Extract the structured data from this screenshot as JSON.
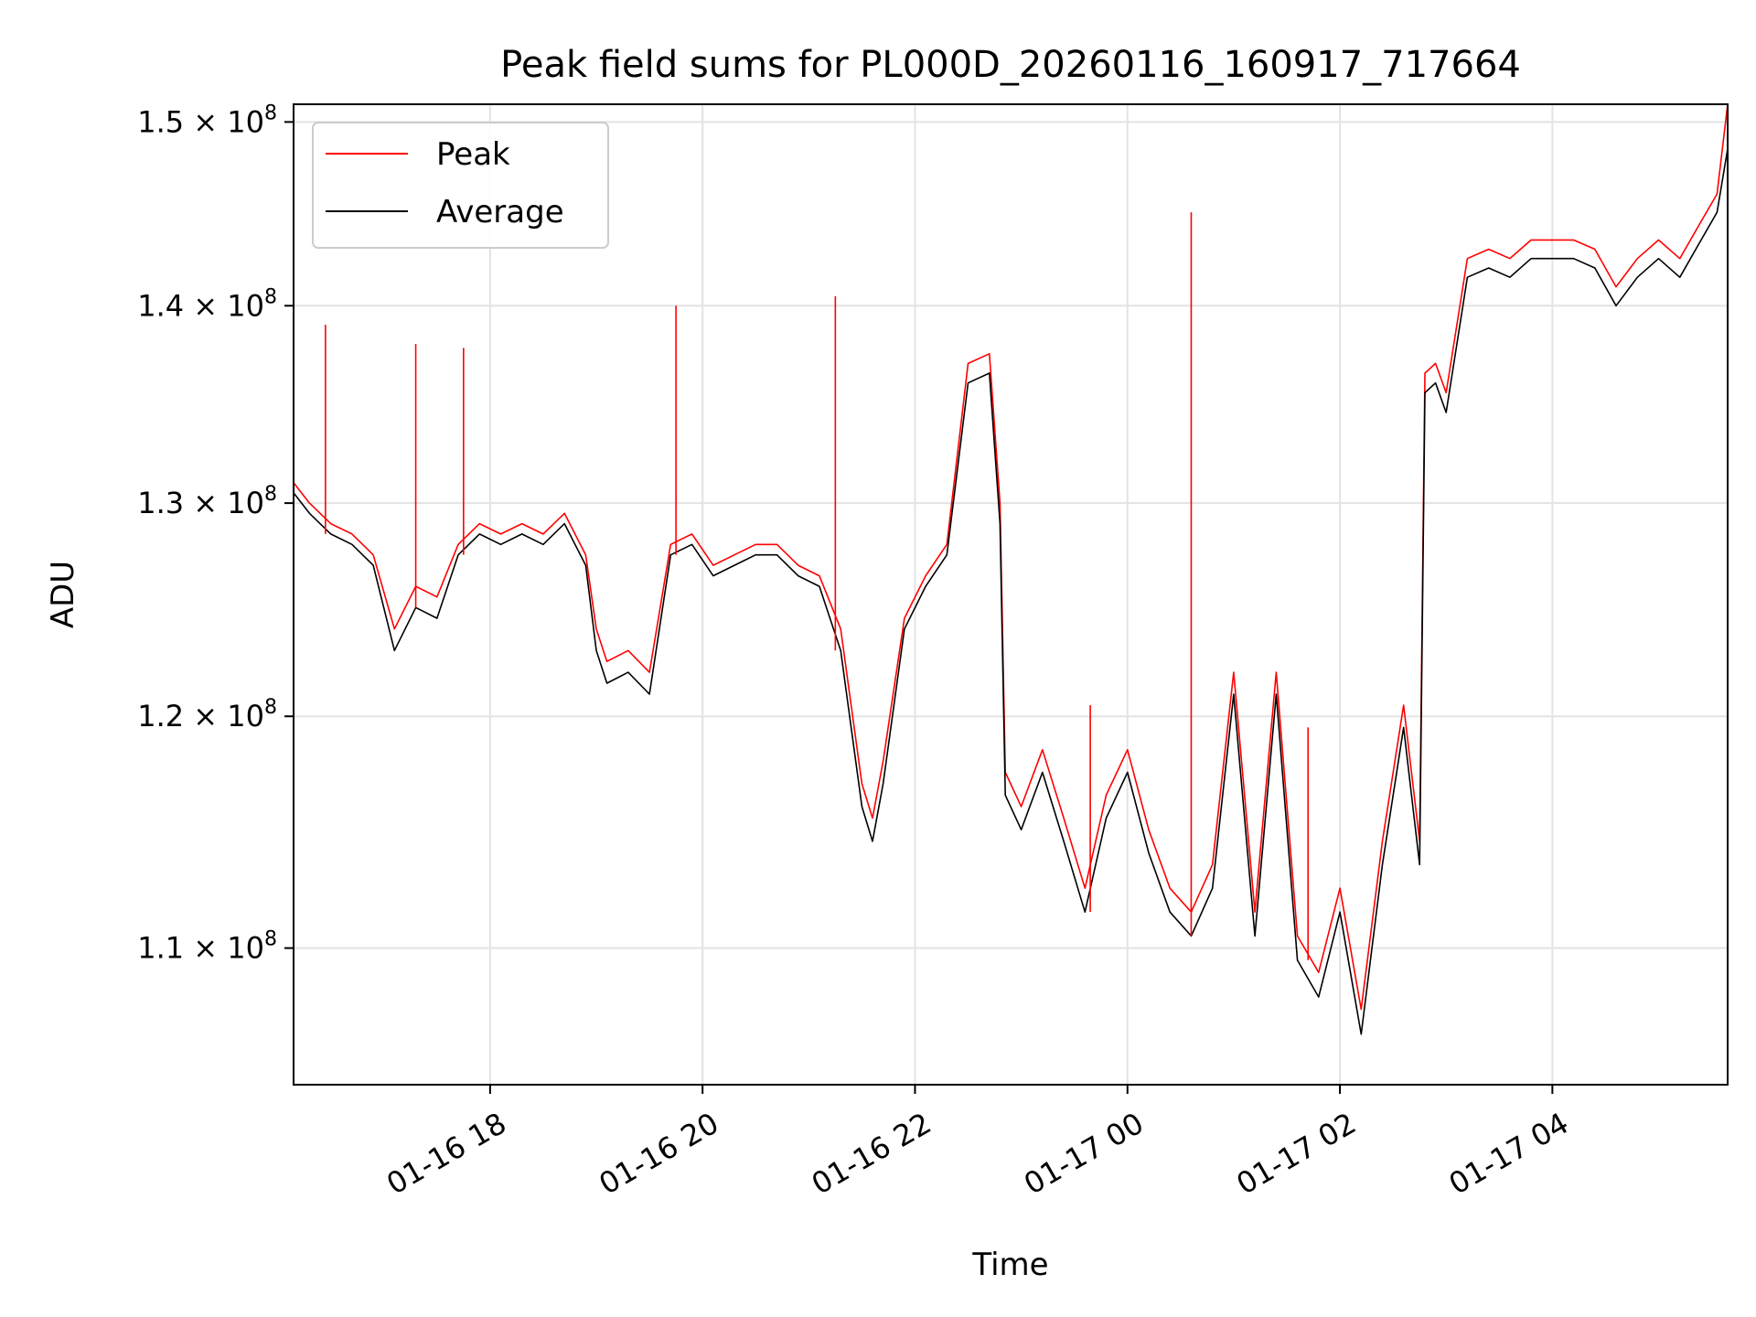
{
  "chart_data": {
    "type": "line",
    "title": "Peak field sums for PL000D_20260116_160917_717664",
    "xlabel": "Time",
    "ylabel": "ADU",
    "y_scale": "log",
    "ylim": [
      104500000,
      151000000
    ],
    "xlim": [
      "01-16 16:09",
      "01-17 05:39"
    ],
    "grid": true,
    "legend_position": "top-left",
    "x_ticks": [
      {
        "label": "01-16 18",
        "hours": 18
      },
      {
        "label": "01-16 20",
        "hours": 20
      },
      {
        "label": "01-16 22",
        "hours": 22
      },
      {
        "label": "01-17 00",
        "hours": 24
      },
      {
        "label": "01-17 02",
        "hours": 26
      },
      {
        "label": "01-17 04",
        "hours": 28
      }
    ],
    "y_ticks": [
      {
        "mantissa": "1.1",
        "exponent": "8",
        "value": 110000000
      },
      {
        "mantissa": "1.2",
        "exponent": "8",
        "value": 120000000
      },
      {
        "mantissa": "1.3",
        "exponent": "8",
        "value": 130000000
      },
      {
        "mantissa": "1.4",
        "exponent": "8",
        "value": 140000000
      },
      {
        "mantissa": "1.5",
        "exponent": "8",
        "value": 150000000
      }
    ],
    "times_hours": [
      16.15,
      16.3,
      16.5,
      16.7,
      16.9,
      17.1,
      17.3,
      17.5,
      17.7,
      17.9,
      18.1,
      18.3,
      18.5,
      18.7,
      18.9,
      19.0,
      19.1,
      19.3,
      19.5,
      19.7,
      19.9,
      20.1,
      20.3,
      20.5,
      20.7,
      20.9,
      21.1,
      21.3,
      21.5,
      21.6,
      21.7,
      21.9,
      22.1,
      22.3,
      22.5,
      22.7,
      22.8,
      22.85,
      23.0,
      23.2,
      23.4,
      23.6,
      23.8,
      24.0,
      24.2,
      24.4,
      24.6,
      24.8,
      25.0,
      25.2,
      25.4,
      25.6,
      25.8,
      26.0,
      26.2,
      26.4,
      26.6,
      26.75,
      26.8,
      26.9,
      27.0,
      27.2,
      27.4,
      27.6,
      27.8,
      28.0,
      28.2,
      28.4,
      28.6,
      28.8,
      29.0,
      29.2,
      29.4,
      29.55,
      29.65
    ],
    "series": [
      {
        "name": "Peak",
        "color": "#ff0000",
        "values": [
          131000000,
          130000000,
          129000000,
          128500000,
          127500000,
          124000000,
          126000000,
          125500000,
          128000000,
          129000000,
          128500000,
          129000000,
          128500000,
          129500000,
          127500000,
          124000000,
          122500000,
          123000000,
          122000000,
          128000000,
          128500000,
          127000000,
          127500000,
          128000000,
          128000000,
          127000000,
          126500000,
          124000000,
          117000000,
          115500000,
          118000000,
          124500000,
          126500000,
          128000000,
          137000000,
          137500000,
          130000000,
          117500000,
          116000000,
          118500000,
          115500000,
          112500000,
          116500000,
          118500000,
          115000000,
          112500000,
          111500000,
          113500000,
          122000000,
          111500000,
          122000000,
          110500000,
          109000000,
          112500000,
          107500000,
          114500000,
          120500000,
          114500000,
          136500000,
          137000000,
          135500000,
          142500000,
          143000000,
          142500000,
          143500000,
          143500000,
          143500000,
          143000000,
          141000000,
          142500000,
          143500000,
          142500000,
          144500000,
          146000000,
          151000000
        ]
      },
      {
        "name": "Average",
        "color": "#000000",
        "values": [
          130500000,
          129500000,
          128500000,
          128000000,
          127000000,
          123000000,
          125000000,
          124500000,
          127500000,
          128500000,
          128000000,
          128500000,
          128000000,
          129000000,
          127000000,
          123000000,
          121500000,
          122000000,
          121000000,
          127500000,
          128000000,
          126500000,
          127000000,
          127500000,
          127500000,
          126500000,
          126000000,
          123000000,
          116000000,
          114500000,
          117000000,
          124000000,
          126000000,
          127500000,
          136000000,
          136500000,
          129000000,
          116500000,
          115000000,
          117500000,
          114500000,
          111500000,
          115500000,
          117500000,
          114000000,
          111500000,
          110500000,
          112500000,
          121000000,
          110500000,
          121000000,
          109500000,
          108000000,
          111500000,
          106500000,
          113500000,
          119500000,
          113500000,
          135500000,
          136000000,
          134500000,
          141500000,
          142000000,
          141500000,
          142500000,
          142500000,
          142500000,
          142000000,
          140000000,
          141500000,
          142500000,
          141500000,
          143500000,
          145000000,
          148500000
        ]
      }
    ],
    "spikes": [
      {
        "hours": 16.45,
        "value": 139000000
      },
      {
        "hours": 17.3,
        "value": 138000000
      },
      {
        "hours": 17.75,
        "value": 137800000
      },
      {
        "hours": 19.75,
        "value": 140000000
      },
      {
        "hours": 21.25,
        "value": 140500000
      },
      {
        "hours": 23.65,
        "value": 120500000
      },
      {
        "hours": 24.6,
        "value": 145000000
      },
      {
        "hours": 25.7,
        "value": 119500000
      }
    ]
  }
}
